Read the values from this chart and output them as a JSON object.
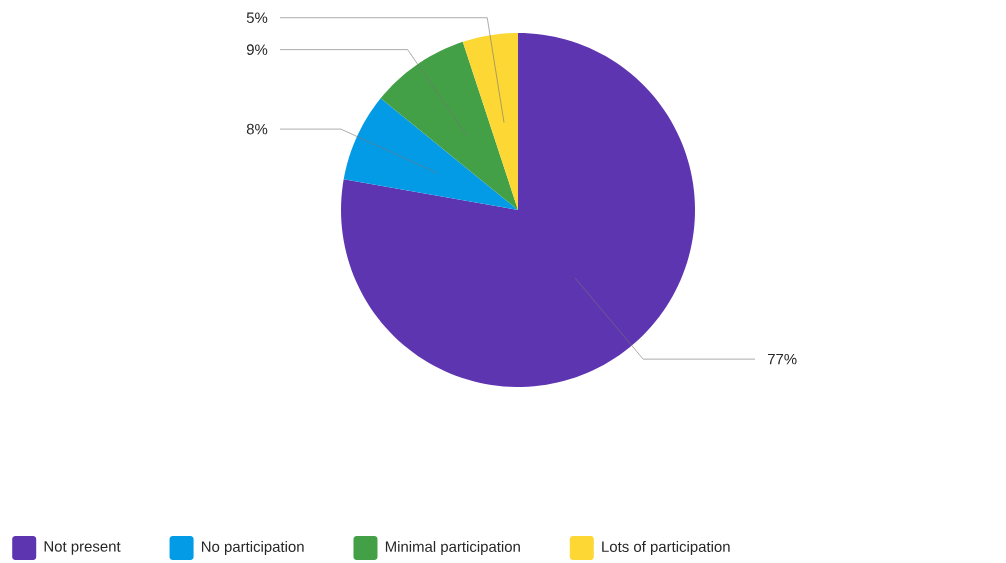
{
  "chart_data": {
    "type": "pie",
    "categories": [
      "Not present",
      "No participation",
      "Minimal participation",
      "Lots of participation"
    ],
    "values": [
      77,
      8,
      9,
      5
    ],
    "colors": [
      "#5e35b1",
      "#039be5",
      "#43a047",
      "#fdd835"
    ],
    "value_labels": [
      "77%",
      "8%",
      "9%",
      "5%"
    ],
    "legend": "bottom"
  }
}
